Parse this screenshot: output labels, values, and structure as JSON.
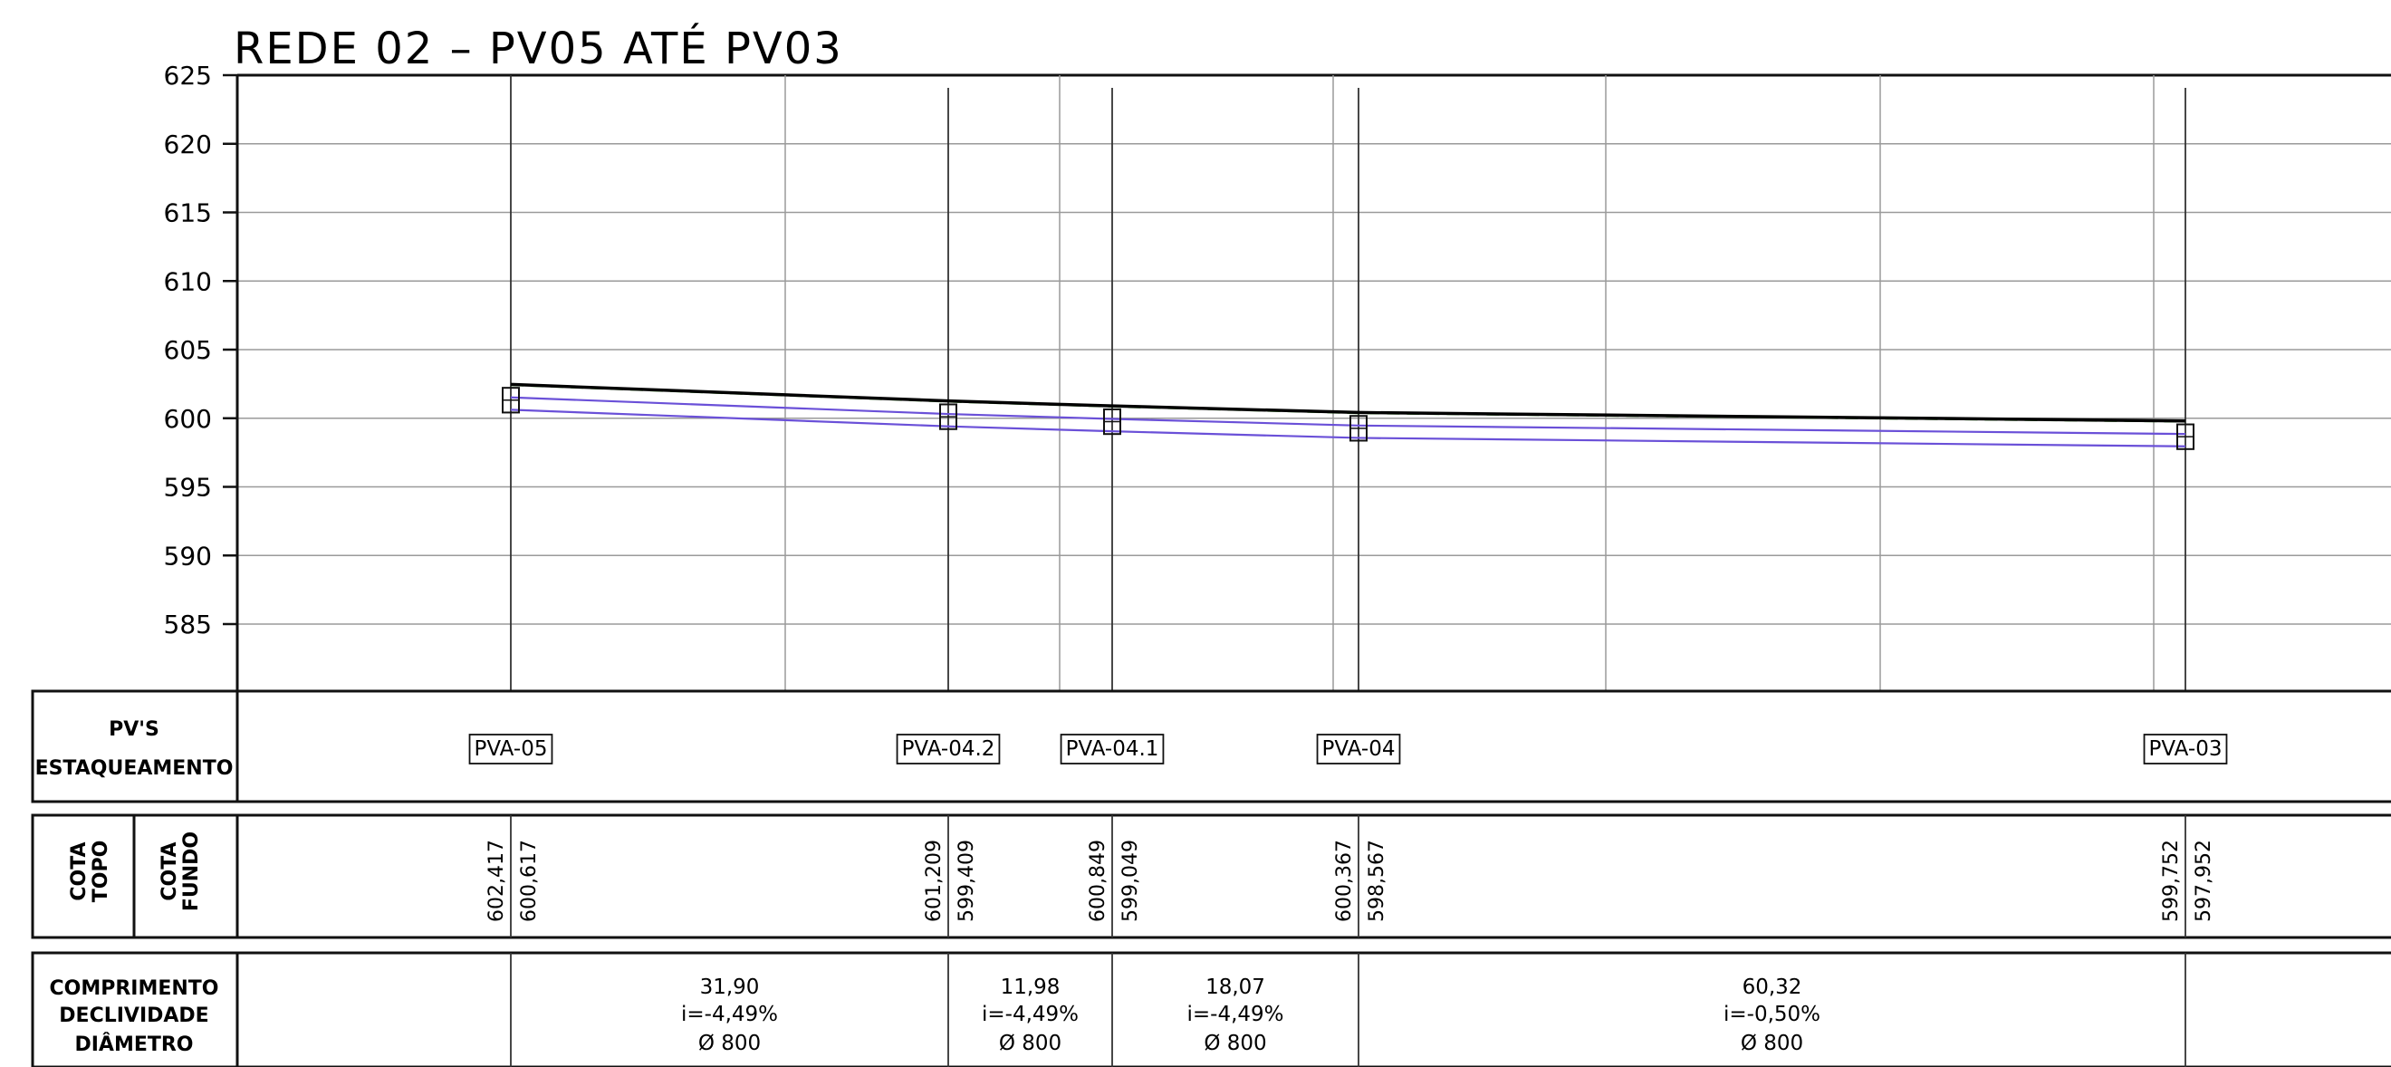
{
  "chart_data": {
    "type": "line",
    "title": "REDE 02 – PV05 ATÉ PV03",
    "ylim": [
      585,
      625
    ],
    "y_ticks": [
      "625",
      "620",
      "615",
      "610",
      "605",
      "600",
      "595",
      "590",
      "585"
    ],
    "grid": true,
    "series_colors": {
      "terrain": "#000000",
      "terrain_dashed": "#5fb84a",
      "pipe": "#6a50d8"
    },
    "stations": [
      {
        "pv": "PVA-05",
        "cota_topo": "602,417",
        "cota_fundo": "600,617"
      },
      {
        "pv": "PVA-04.2",
        "cota_topo": "601,209",
        "cota_fundo": "599,409"
      },
      {
        "pv": "PVA-04.1",
        "cota_topo": "600,849",
        "cota_fundo": "599,049"
      },
      {
        "pv": "PVA-04",
        "cota_topo": "600,367",
        "cota_fundo": "598,567"
      },
      {
        "pv": "PVA-03",
        "cota_topo": "599,752",
        "cota_fundo": "597,952"
      }
    ],
    "segments": [
      {
        "comprimento": "31,90",
        "declividade": "i=-4,49%",
        "diametro": "Ø 800"
      },
      {
        "comprimento": "11,98",
        "declividade": "i=-4,49%",
        "diametro": "Ø 800"
      },
      {
        "comprimento": "18,07",
        "declividade": "i=-4,49%",
        "diametro": "Ø 800"
      },
      {
        "comprimento": "60,32",
        "declividade": "i=-0,50%",
        "diametro": "Ø 800"
      }
    ]
  },
  "table": {
    "row1_line1": "PV'S",
    "row1_line2": "ESTAQUEAMENTO",
    "row2_col1": "COTA TOPO",
    "row2_col1_a": "COTA",
    "row2_col1_b": "TOPO",
    "row2_col2_a": "COTA",
    "row2_col2_b": "FUNDO",
    "row3_line1": "COMPRIMENTO",
    "row3_line2": "DECLIVIDADE",
    "row3_line3": "DIÂMETRO"
  }
}
